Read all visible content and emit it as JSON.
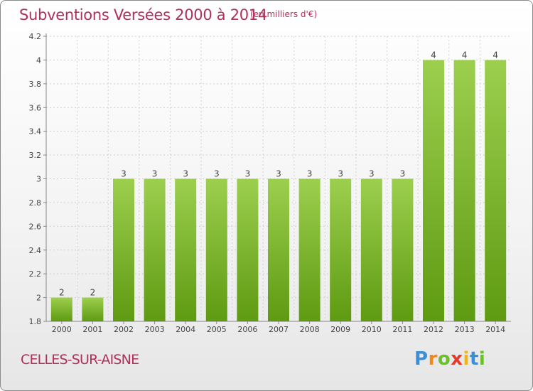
{
  "header": {
    "title": "Subventions Versées 2000 à 2014",
    "unit": "(en milliers d'€)"
  },
  "footer": {
    "commune": "CELLES-SUR-AISNE",
    "logo_text": "Proxiti"
  },
  "colors": {
    "title": "#b0305a",
    "bar_top": "#9ccf4e",
    "bar_bottom": "#5e9a12",
    "grid": "#d0d0d0",
    "axis": "#888888"
  },
  "chart_data": {
    "type": "bar",
    "categories": [
      "2000",
      "2001",
      "2002",
      "2003",
      "2004",
      "2005",
      "2006",
      "2007",
      "2008",
      "2009",
      "2010",
      "2011",
      "2012",
      "2013",
      "2014"
    ],
    "values": [
      2,
      2,
      3,
      3,
      3,
      3,
      3,
      3,
      3,
      3,
      3,
      3,
      4,
      4,
      4
    ],
    "value_labels": [
      "2",
      "2",
      "3",
      "3",
      "3",
      "3",
      "3",
      "3",
      "3",
      "3",
      "3",
      "3",
      "4",
      "4",
      "4"
    ],
    "y_ticks": [
      "1.8",
      "2",
      "2.2",
      "2.4",
      "2.6",
      "2.8",
      "3",
      "3.2",
      "3.4",
      "3.6",
      "3.8",
      "4",
      "4.2"
    ],
    "ylim": [
      1.8,
      4.2
    ],
    "grid": true,
    "legend": "none"
  }
}
